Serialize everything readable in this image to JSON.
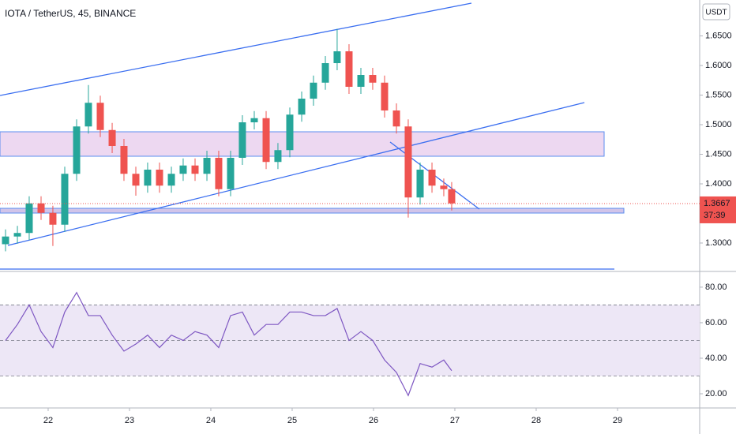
{
  "chart_data": {
    "type": "candlestick",
    "title": "IOTA / TetherUS, 45, BINANCE",
    "currency": "USDT",
    "last_price": 1.3667,
    "countdown": "37:39",
    "up_color": "#26a69a",
    "down_color": "#ef5350",
    "xlim": [
      21.408,
      30.01
    ],
    "xticks": [
      22,
      23,
      24,
      25,
      26,
      27,
      28,
      29
    ],
    "ylim": [
      1.2533,
      1.7107
    ],
    "yticks": [
      {
        "value": 1.3,
        "label": "1.3000"
      },
      {
        "value": 1.4,
        "label": "1.4000"
      },
      {
        "value": 1.45,
        "label": "1.4500"
      },
      {
        "value": 1.5,
        "label": "1.5000"
      },
      {
        "value": 1.55,
        "label": "1.5500"
      },
      {
        "value": 1.6,
        "label": "1.6000"
      },
      {
        "value": 1.65,
        "label": "1.6500"
      }
    ],
    "x": [
      21.476,
      21.622,
      21.767,
      21.913,
      22.058,
      22.204,
      22.35,
      22.495,
      22.641,
      22.787,
      22.932,
      23.078,
      23.223,
      23.369,
      23.515,
      23.66,
      23.806,
      23.952,
      24.097,
      24.243,
      24.388,
      24.534,
      24.68,
      24.825,
      24.971,
      25.117,
      25.262,
      25.408,
      25.553,
      25.699,
      25.845,
      25.99,
      26.136,
      26.282,
      26.427,
      26.573,
      26.719,
      26.864,
      26.961
    ],
    "open": [
      1.298,
      1.311,
      1.317,
      1.367,
      1.351,
      1.331,
      1.417,
      1.497,
      1.537,
      1.491,
      1.464,
      1.417,
      1.397,
      1.424,
      1.397,
      1.417,
      1.431,
      1.417,
      1.444,
      1.391,
      1.444,
      1.504,
      1.511,
      1.437,
      1.457,
      1.517,
      1.544,
      1.571,
      1.604,
      1.624,
      1.564,
      1.584,
      1.571,
      1.524,
      1.497,
      1.377,
      1.424,
      1.397,
      1.391
    ],
    "high": [
      1.323,
      1.329,
      1.379,
      1.379,
      1.363,
      1.429,
      1.509,
      1.567,
      1.549,
      1.503,
      1.476,
      1.429,
      1.436,
      1.436,
      1.429,
      1.443,
      1.443,
      1.456,
      1.456,
      1.456,
      1.516,
      1.523,
      1.523,
      1.469,
      1.529,
      1.556,
      1.583,
      1.616,
      1.662,
      1.636,
      1.596,
      1.596,
      1.583,
      1.536,
      1.509,
      1.436,
      1.436,
      1.409,
      1.403
    ],
    "low": [
      1.286,
      1.299,
      1.305,
      1.339,
      1.295,
      1.319,
      1.405,
      1.485,
      1.479,
      1.452,
      1.405,
      1.38,
      1.385,
      1.385,
      1.385,
      1.405,
      1.405,
      1.405,
      1.379,
      1.379,
      1.432,
      1.492,
      1.425,
      1.425,
      1.445,
      1.505,
      1.532,
      1.559,
      1.592,
      1.552,
      1.552,
      1.559,
      1.512,
      1.485,
      1.343,
      1.365,
      1.385,
      1.379,
      1.355
    ],
    "close": [
      1.311,
      1.317,
      1.367,
      1.351,
      1.331,
      1.417,
      1.497,
      1.537,
      1.491,
      1.464,
      1.417,
      1.397,
      1.424,
      1.397,
      1.417,
      1.431,
      1.417,
      1.444,
      1.391,
      1.444,
      1.504,
      1.511,
      1.437,
      1.457,
      1.517,
      1.544,
      1.571,
      1.604,
      1.624,
      1.564,
      1.584,
      1.571,
      1.524,
      1.497,
      1.377,
      1.424,
      1.397,
      1.391,
      1.367
    ],
    "rsi": {
      "color": "#7e57c2",
      "band_color": "#ede7f6",
      "ylim": [
        12.9,
        88.4
      ],
      "yticks": [
        {
          "value": 20,
          "label": "20.00"
        },
        {
          "value": 40,
          "label": "40.00"
        },
        {
          "value": 60,
          "label": "60.00"
        },
        {
          "value": 80,
          "label": "80.00"
        }
      ],
      "levels": [
        70,
        50,
        30
      ],
      "values": [
        50,
        59,
        70,
        55,
        46,
        66,
        77,
        64,
        64,
        53,
        44,
        48,
        53,
        46,
        53,
        50,
        55,
        53,
        46,
        64,
        66,
        53,
        59,
        59,
        66,
        66,
        64,
        64,
        68,
        50,
        55,
        50,
        39,
        32,
        19,
        37,
        35,
        39,
        33
      ]
    }
  }
}
